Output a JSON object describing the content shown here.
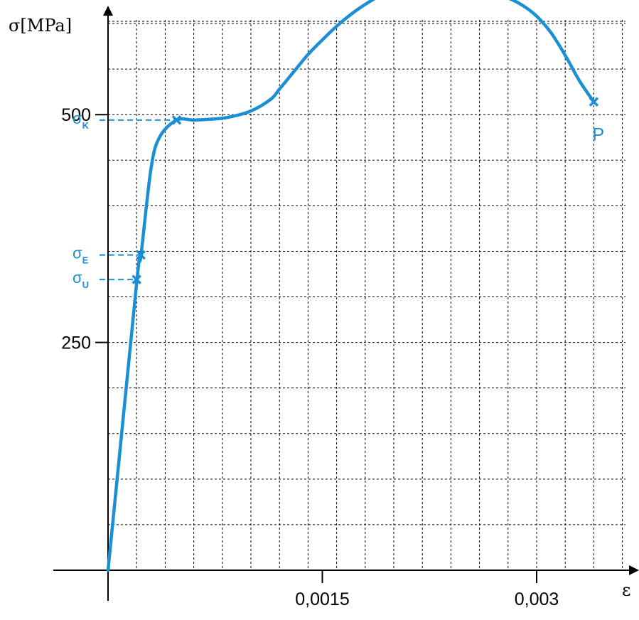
{
  "chart_data": {
    "type": "line",
    "title": "",
    "ylabel": "σ[MPa]",
    "xlabel": "ε",
    "xlim": [
      0,
      0.0036
    ],
    "ylim": [
      0,
      640
    ],
    "grid": true,
    "x_ticks": [
      {
        "value": 0.0015,
        "label": "0,0015"
      },
      {
        "value": 0.003,
        "label": "0,003"
      }
    ],
    "y_ticks": [
      {
        "value": 250,
        "label": "250"
      },
      {
        "value": 500,
        "label": "500"
      }
    ],
    "series": [
      {
        "points": [
          [
            0,
            0
          ],
          [
            0.0002,
            315
          ],
          [
            0.00023,
            345
          ],
          [
            0.0003,
            440
          ],
          [
            0.00036,
            475
          ],
          [
            0.00048,
            494
          ],
          [
            0.0006,
            494
          ],
          [
            0.00072,
            495
          ],
          [
            0.00084,
            497
          ],
          [
            0.001,
            504
          ],
          [
            0.00114,
            517
          ],
          [
            0.0012,
            528
          ],
          [
            0.0013,
            547
          ],
          [
            0.0014,
            566
          ],
          [
            0.0015,
            582
          ],
          [
            0.0016,
            597
          ],
          [
            0.0017,
            610
          ],
          [
            0.0018,
            621
          ],
          [
            0.0019,
            630
          ],
          [
            0.002,
            636
          ],
          [
            0.0021,
            639
          ],
          [
            0.0022,
            641
          ],
          [
            0.0023,
            641
          ],
          [
            0.0024,
            640
          ],
          [
            0.0025,
            638
          ],
          [
            0.0026,
            636
          ],
          [
            0.0027,
            633
          ],
          [
            0.0028,
            628
          ],
          [
            0.0029,
            620
          ],
          [
            0.003,
            608
          ],
          [
            0.0031,
            590
          ],
          [
            0.0032,
            565
          ],
          [
            0.0033,
            537
          ],
          [
            0.0034,
            514
          ]
        ]
      }
    ],
    "annotations": [
      {
        "symbol": "σ",
        "sub": "U",
        "x": 0.0002,
        "y": 319
      },
      {
        "symbol": "σ",
        "sub": "E",
        "x": 0.00023,
        "y": 346
      },
      {
        "symbol": "σ",
        "sub": "K",
        "x": 0.00048,
        "y": 494
      },
      {
        "symbol": "σ",
        "sub": "P",
        "x": 0.0023,
        "y": 641
      }
    ],
    "end_point": {
      "label": "P",
      "x": 0.0034,
      "y": 514
    },
    "colors": {
      "curve": "#1a8fd6",
      "axes": "#000000",
      "grid": "#000000"
    }
  }
}
